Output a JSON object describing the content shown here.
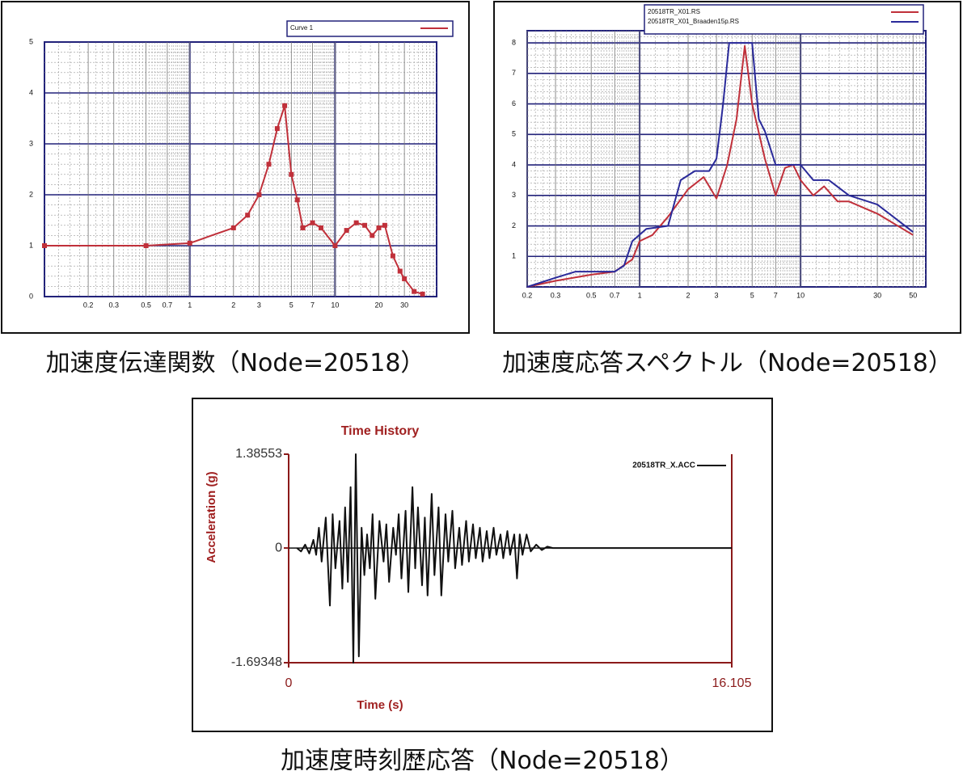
{
  "chart_data": [
    {
      "type": "line",
      "caption": "加速度伝達関数（Node=20518）",
      "xscale": "log",
      "grid": true,
      "markers": true,
      "xlim": [
        0.1,
        50
      ],
      "ylim": [
        0,
        5
      ],
      "xticks": [
        0.2,
        0.3,
        0.5,
        0.7,
        1,
        2,
        3,
        5,
        7,
        10,
        20,
        30
      ],
      "yticks": [
        0,
        1,
        2,
        3,
        4,
        5
      ],
      "series": [
        {
          "name": "Curve 1",
          "color": "#c0303a",
          "x": [
            0.1,
            0.5,
            1,
            2,
            2.5,
            3,
            3.5,
            4,
            4.5,
            5,
            5.5,
            6,
            7,
            8,
            10,
            12,
            14,
            16,
            18,
            20,
            22,
            25,
            28,
            30,
            35,
            40
          ],
          "values": [
            1.0,
            1.0,
            1.05,
            1.35,
            1.6,
            2.0,
            2.6,
            3.3,
            3.75,
            2.4,
            1.9,
            1.35,
            1.45,
            1.35,
            1.0,
            1.3,
            1.45,
            1.4,
            1.2,
            1.35,
            1.4,
            0.8,
            0.5,
            0.35,
            0.1,
            0.05
          ]
        }
      ]
    },
    {
      "type": "line",
      "caption": "加速度応答スペクトル（Node=20518）",
      "xscale": "log",
      "grid": true,
      "markers": false,
      "xlim": [
        0.2,
        60
      ],
      "ylim": [
        0,
        8.4
      ],
      "xticks": [
        0.2,
        0.3,
        0.5,
        0.7,
        1,
        2,
        3,
        5,
        7,
        10,
        30,
        50
      ],
      "yticks": [
        1,
        2,
        3,
        4,
        5,
        6,
        7,
        8
      ],
      "series": [
        {
          "name": "20518TR_X01.RS",
          "color": "#c0303a",
          "x": [
            0.2,
            0.3,
            0.5,
            0.7,
            0.9,
            1,
            1.2,
            1.5,
            2,
            2.5,
            3,
            3.5,
            4,
            4.5,
            5,
            6,
            7,
            8,
            9,
            10,
            12,
            14,
            17,
            20,
            30,
            50
          ],
          "values": [
            0,
            0.2,
            0.4,
            0.5,
            0.9,
            1.5,
            1.7,
            2.3,
            3.2,
            3.6,
            2.9,
            4.0,
            5.5,
            7.9,
            6.0,
            4.2,
            3.0,
            3.9,
            4.0,
            3.5,
            3.0,
            3.3,
            2.8,
            2.8,
            2.4,
            1.7
          ]
        },
        {
          "name": "20518TR_X01_Braaden15p.RS",
          "color": "#2a2a9a",
          "x": [
            0.2,
            0.3,
            0.4,
            0.7,
            0.8,
            0.9,
            1.1,
            1.5,
            1.8,
            2.2,
            2.7,
            3,
            3.3,
            3.6,
            5,
            5.5,
            6,
            7,
            10,
            12,
            15,
            20,
            30,
            50
          ],
          "values": [
            0,
            0.3,
            0.5,
            0.5,
            0.7,
            1.5,
            1.9,
            2.0,
            3.5,
            3.8,
            3.8,
            4.2,
            6.0,
            8.0,
            8.0,
            5.5,
            5.1,
            4.0,
            4.0,
            3.5,
            3.5,
            3.0,
            2.7,
            1.8
          ]
        }
      ]
    },
    {
      "type": "line",
      "caption": "加速度時刻歴応答（Node=20518）",
      "title": "Time History",
      "xlabel": "Time (s)",
      "ylabel": "Acceleration (g)",
      "xscale": "linear",
      "grid": false,
      "markers": false,
      "xlim": [
        0,
        16.105
      ],
      "ylim": [
        -1.69348,
        1.38553
      ],
      "xticks": [
        0,
        16.105
      ],
      "yticks": [
        1.38553,
        0,
        -1.69348
      ],
      "series": [
        {
          "name": "20518TR_X.ACC",
          "color": "#111111",
          "x": [
            0.3,
            0.45,
            0.6,
            0.75,
            0.9,
            1.0,
            1.1,
            1.2,
            1.35,
            1.5,
            1.6,
            1.7,
            1.85,
            1.95,
            2.05,
            2.15,
            2.25,
            2.35,
            2.44,
            2.55,
            2.65,
            2.75,
            2.85,
            2.95,
            3.05,
            3.15,
            3.3,
            3.45,
            3.55,
            3.65,
            3.8,
            3.9,
            4.0,
            4.1,
            4.25,
            4.35,
            4.5,
            4.6,
            4.7,
            4.85,
            4.95,
            5.05,
            5.2,
            5.3,
            5.45,
            5.55,
            5.7,
            5.8,
            5.95,
            6.05,
            6.2,
            6.3,
            6.45,
            6.55,
            6.7,
            6.8,
            6.95,
            7.05,
            7.2,
            7.3,
            7.45,
            7.55,
            7.7,
            7.8,
            7.95,
            8.05,
            8.2,
            8.3,
            8.4,
            8.5,
            8.65,
            8.8,
            9.0,
            9.2,
            9.4,
            9.6,
            16.105
          ],
          "values": [
            0,
            -0.05,
            0.05,
            -0.08,
            0.12,
            -0.1,
            0.3,
            -0.2,
            0.45,
            -0.85,
            0.5,
            -0.3,
            0.4,
            -0.6,
            0.6,
            -0.5,
            0.9,
            -1.69348,
            1.38553,
            -1.6,
            0.3,
            -0.4,
            0.2,
            -0.3,
            0.5,
            -0.75,
            0.4,
            -0.2,
            0.35,
            -0.5,
            0.3,
            -0.1,
            0.5,
            -0.45,
            0.55,
            -0.65,
            0.9,
            -0.3,
            0.6,
            -0.55,
            0.45,
            -0.7,
            0.8,
            -0.4,
            0.6,
            -0.7,
            0.5,
            -0.2,
            0.55,
            -0.3,
            0.3,
            -0.25,
            0.4,
            -0.2,
            0.35,
            -0.15,
            0.3,
            -0.2,
            0.25,
            -0.15,
            0.3,
            -0.1,
            0.2,
            -0.15,
            0.25,
            -0.1,
            0.2,
            -0.45,
            0.2,
            -0.1,
            0.2,
            -0.05,
            0.05,
            -0.03,
            0.02,
            0,
            0
          ]
        }
      ]
    }
  ]
}
